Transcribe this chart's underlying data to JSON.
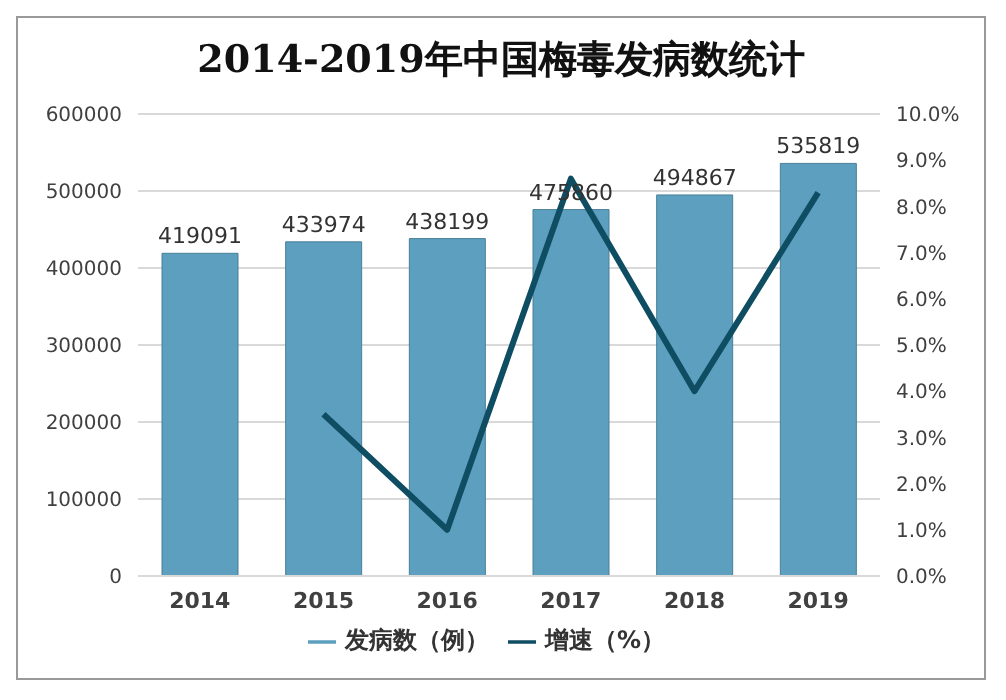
{
  "chart_data": {
    "type": "bar",
    "title": "2014-2019年中国梅毒发病数统计",
    "categories": [
      "2014",
      "2015",
      "2016",
      "2017",
      "2018",
      "2019"
    ],
    "series": [
      {
        "name": "发病数（例）",
        "color": "#5d9fbf",
        "values": [
          419091,
          433974,
          438199,
          475860,
          494867,
          535819
        ],
        "value_labels": [
          "419091",
          "433974",
          "438199",
          "475860",
          "494867",
          "535819"
        ]
      },
      {
        "name": "增速（%）",
        "type": "line",
        "axis": "y2",
        "color": "#0f4d63",
        "values": [
          null,
          3.5,
          1.0,
          8.6,
          4.0,
          8.3
        ]
      }
    ],
    "ylim": [
      0,
      600000
    ],
    "yticks": [
      0,
      100000,
      200000,
      300000,
      400000,
      500000,
      600000
    ],
    "y2lim": [
      0,
      10
    ],
    "y2ticks": [
      {
        "value": 0,
        "label": "0.0%"
      },
      {
        "value": 1,
        "label": "1.0%"
      },
      {
        "value": 2,
        "label": "2.0%"
      },
      {
        "value": 3,
        "label": "3.0%"
      },
      {
        "value": 4,
        "label": "4.0%"
      },
      {
        "value": 5,
        "label": "5.0%"
      },
      {
        "value": 6,
        "label": "6.0%"
      },
      {
        "value": 7,
        "label": "7.0%"
      },
      {
        "value": 8,
        "label": "8.0%"
      },
      {
        "value": 9,
        "label": "9.0%"
      },
      {
        "value": 10,
        "label": "10.0%"
      }
    ],
    "grid": "y",
    "legend": "bottom",
    "marker": "none"
  }
}
